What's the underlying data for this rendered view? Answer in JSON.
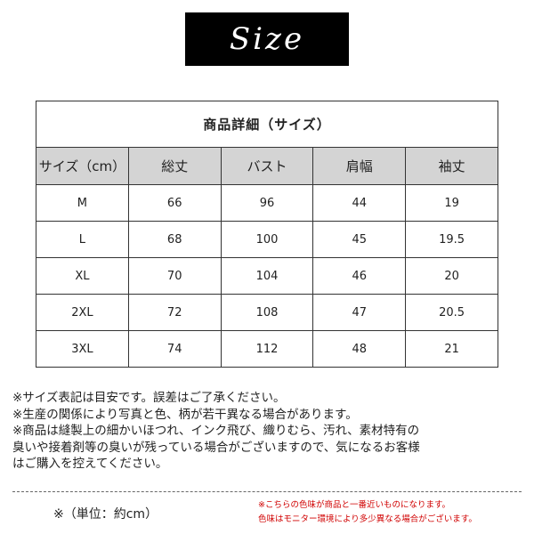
{
  "header": {
    "title": "Size"
  },
  "table": {
    "title": "商品詳細（サイズ）",
    "columns": [
      "サイズ（cm）",
      "総丈",
      "バスト",
      "肩幅",
      "袖丈"
    ],
    "rows": [
      [
        "M",
        66,
        96,
        44,
        19
      ],
      [
        "L",
        68,
        100,
        45,
        19.5
      ],
      [
        "XL",
        70,
        104,
        46,
        20
      ],
      [
        "2XL",
        72,
        108,
        47,
        20.5
      ],
      [
        "3XL",
        74,
        112,
        48,
        21
      ]
    ]
  },
  "notes": [
    "※サイズ表記は目安です。誤差はご了承ください。",
    "※生産の関係により写真と色、柄が若干異なる場合があります。",
    "※商品は縫製上の細かいほつれ、インク飛び、織りむら、汚れ、素材特有の",
    "臭いや接着剤等の臭いが残っている場合がございますので、気になるお客様",
    "はご購入を控えてください。"
  ],
  "unit": "※（単位：約cm）",
  "disclaimer": [
    "※こちらの色味が商品と一番近いものになります。",
    "色味はモニター環境により多少異なる場合がございます。"
  ]
}
